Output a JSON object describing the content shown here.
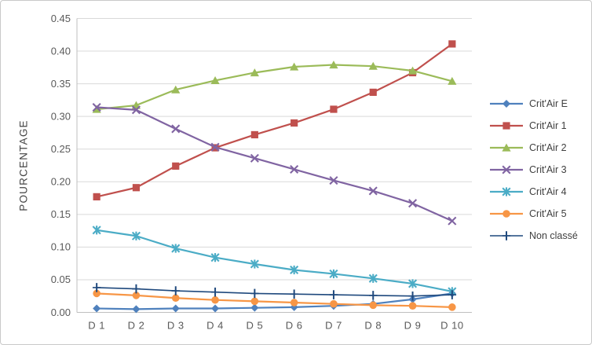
{
  "frame": {
    "background": "#ffffff",
    "border_color": "#c9c9c9"
  },
  "colors": {
    "gridline": "#d9d9d9",
    "axis_line": "#bfbfbf",
    "tick_text": "#595959",
    "legend_text": "#404040"
  },
  "chart_data": {
    "type": "line",
    "title": "",
    "xlabel": "",
    "ylabel": "POURCENTAGE",
    "categories": [
      "D 1",
      "D 2",
      "D 3",
      "D 4",
      "D 5",
      "D 6",
      "D 7",
      "D 8",
      "D 9",
      "D 10"
    ],
    "y_ticks": [
      "0.00",
      "0.05",
      "0.10",
      "0.15",
      "0.20",
      "0.25",
      "0.30",
      "0.35",
      "0.40",
      "0.45"
    ],
    "ylim": [
      0,
      0.45
    ],
    "grid": "horizontal",
    "legend_position": "right",
    "series": [
      {
        "name": "Crit'Air E",
        "color": "#4F81BD",
        "marker": "diamond",
        "line_width": 2.2,
        "values": [
          0.006,
          0.005,
          0.006,
          0.006,
          0.007,
          0.008,
          0.01,
          0.013,
          0.02,
          0.029
        ]
      },
      {
        "name": "Crit'Air 1",
        "color": "#C0504D",
        "marker": "square",
        "line_width": 2.2,
        "values": [
          0.177,
          0.191,
          0.224,
          0.252,
          0.272,
          0.29,
          0.311,
          0.337,
          0.367,
          0.411
        ]
      },
      {
        "name": "Crit'Air 2",
        "color": "#9BBB59",
        "marker": "triangle",
        "line_width": 2.2,
        "values": [
          0.311,
          0.317,
          0.341,
          0.355,
          0.367,
          0.376,
          0.379,
          0.377,
          0.37,
          0.354
        ]
      },
      {
        "name": "Crit'Air 3",
        "color": "#8064A2",
        "marker": "x",
        "line_width": 2.2,
        "values": [
          0.314,
          0.31,
          0.281,
          0.253,
          0.236,
          0.219,
          0.202,
          0.186,
          0.167,
          0.14
        ]
      },
      {
        "name": "Crit'Air 4",
        "color": "#4BACC6",
        "marker": "star",
        "line_width": 2.2,
        "values": [
          0.126,
          0.117,
          0.098,
          0.084,
          0.074,
          0.065,
          0.059,
          0.052,
          0.044,
          0.032
        ]
      },
      {
        "name": "Crit'Air 5",
        "color": "#F79646",
        "marker": "circle",
        "line_width": 2.2,
        "values": [
          0.029,
          0.026,
          0.022,
          0.019,
          0.017,
          0.015,
          0.013,
          0.011,
          0.01,
          0.008
        ]
      },
      {
        "name": "Non classé",
        "color": "#1F497D",
        "marker": "plus",
        "line_width": 1.6,
        "values": [
          0.038,
          0.036,
          0.033,
          0.031,
          0.029,
          0.028,
          0.027,
          0.026,
          0.025,
          0.027
        ]
      }
    ]
  }
}
